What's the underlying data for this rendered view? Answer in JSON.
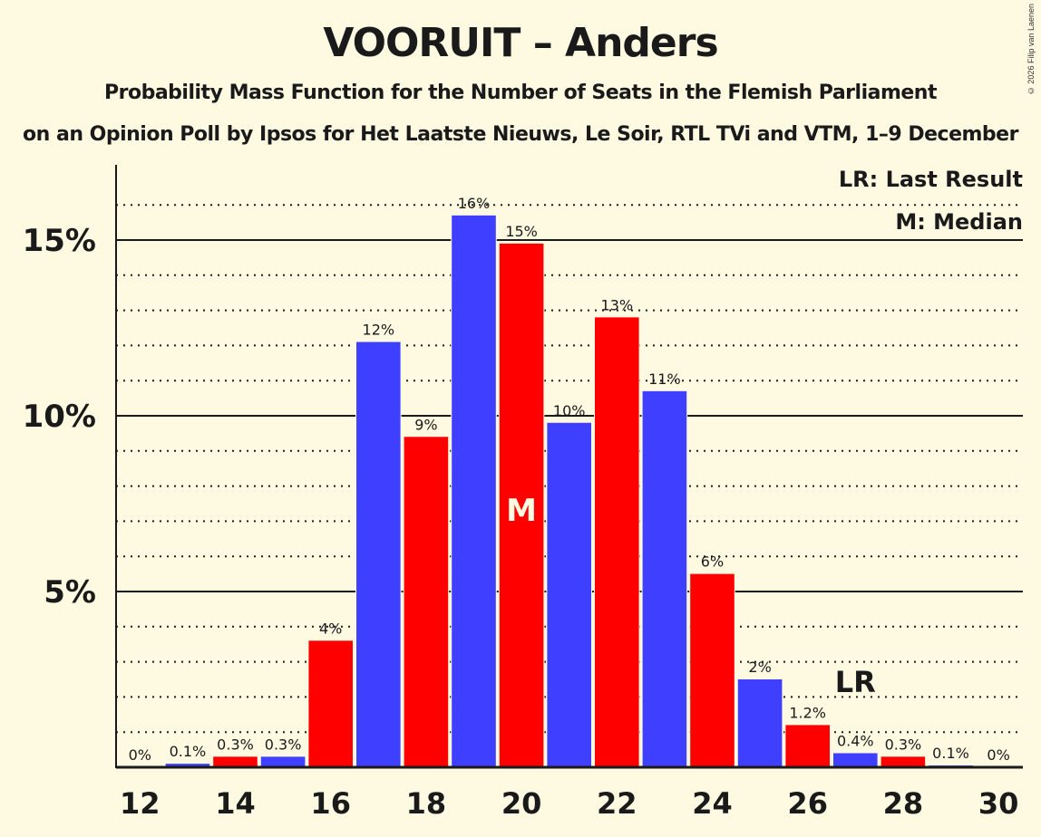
{
  "header": {
    "title": "VOORUIT – Anders",
    "subtitle": "Probability Mass Function for the Number of Seats in the Flemish Parliament",
    "subtitle2": "on an Opinion Poll by Ipsos for Het Laatste Nieuws, Le Soir, RTL TVi and VTM, 1–9 December",
    "copyright": "© 2026 Filip van Laenen"
  },
  "legend": {
    "lr": "LR: Last Result",
    "m": "M: Median"
  },
  "markers": {
    "median_label": "M",
    "median_seat": 20,
    "last_result_label": "LR",
    "last_result_seat": 27
  },
  "colors": {
    "background": "#fefae2",
    "blue": "#3f3fff",
    "red": "#ff0000",
    "axis": "#1a1a1a"
  },
  "chart_data": {
    "type": "bar",
    "title": "VOORUIT – Anders",
    "subtitle": "Probability Mass Function for the Number of Seats in the Flemish Parliament",
    "xlabel": "",
    "ylabel": "",
    "ylim": [
      0,
      17
    ],
    "yticks": [
      5,
      10,
      15
    ],
    "ytick_labels": [
      "5%",
      "10%",
      "15%"
    ],
    "xtick_labels": [
      "12",
      "14",
      "16",
      "18",
      "20",
      "22",
      "24",
      "26",
      "28",
      "30"
    ],
    "grid": "solid at 5% steps, dotted at 1% steps",
    "categories": [
      12,
      13,
      14,
      15,
      16,
      17,
      18,
      19,
      20,
      21,
      22,
      23,
      24,
      25,
      26,
      27,
      28,
      29,
      30
    ],
    "values": [
      0,
      0.1,
      0.3,
      0.3,
      3.6,
      12.1,
      9.4,
      15.7,
      14.9,
      9.8,
      12.8,
      10.7,
      5.5,
      2.5,
      1.2,
      0.4,
      0.3,
      0.05,
      0
    ],
    "labels": [
      "0%",
      "0.1%",
      "0.3%",
      "0.3%",
      "4%",
      "12%",
      "9%",
      "16%",
      "15%",
      "10%",
      "13%",
      "11%",
      "6%",
      "2%",
      "1.2%",
      "0.4%",
      "0.3%",
      "0.1%",
      "0%"
    ],
    "bar_colors": [
      "blue",
      "blue",
      "red",
      "blue",
      "red",
      "blue",
      "red",
      "blue",
      "red",
      "blue",
      "red",
      "blue",
      "red",
      "blue",
      "red",
      "blue",
      "red",
      "blue",
      "red"
    ],
    "annotations": [
      {
        "text": "M",
        "seat": 20,
        "meaning": "Median"
      },
      {
        "text": "LR",
        "seat": 27,
        "meaning": "Last Result"
      }
    ],
    "legend": [
      "LR: Last Result",
      "M: Median"
    ]
  }
}
